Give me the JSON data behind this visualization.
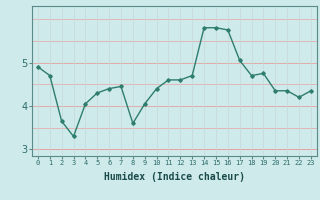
{
  "x": [
    0,
    1,
    2,
    3,
    4,
    5,
    6,
    7,
    8,
    9,
    10,
    11,
    12,
    13,
    14,
    15,
    16,
    17,
    18,
    19,
    20,
    21,
    22,
    23
  ],
  "y": [
    4.9,
    4.7,
    3.65,
    3.3,
    4.05,
    4.3,
    4.4,
    4.45,
    3.6,
    4.05,
    4.4,
    4.6,
    4.6,
    4.7,
    5.8,
    5.8,
    5.75,
    5.05,
    4.7,
    4.75,
    4.35,
    4.35,
    4.2,
    4.35
  ],
  "xlabel": "Humidex (Indice chaleur)",
  "ylim": [
    2.85,
    6.3
  ],
  "yticks": [
    3,
    4,
    5
  ],
  "xlim": [
    -0.5,
    23.5
  ],
  "line_color": "#2e7d6e",
  "marker": "D",
  "marker_size": 1.8,
  "bg_color": "#ceeaea",
  "grid_color_h": "#e8a0a0",
  "grid_color_v": "#c8d8d8",
  "line_width": 1.0
}
